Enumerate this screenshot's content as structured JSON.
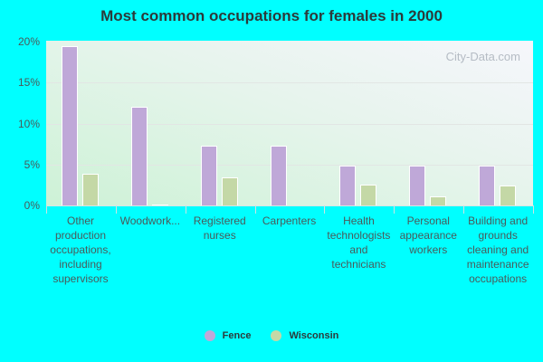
{
  "title": "Most common occupations for females in 2000",
  "watermark": "City-Data.com",
  "colors": {
    "fence": "#bfa8d8",
    "wisconsin": "#c4d8a6"
  },
  "y_ticks": [
    "0%",
    "5%",
    "10%",
    "15%",
    "20%"
  ],
  "legend": [
    {
      "label": "Fence",
      "color": "#bfa8d8"
    },
    {
      "label": "Wisconsin",
      "color": "#c4d8a6"
    }
  ],
  "categories": [
    "Other production occupations, including supervisors",
    "Woodwork...",
    "Registered nurses",
    "Carpenters",
    "Health technologists and technicians",
    "Personal appearance workers",
    "Building and grounds cleaning and maintenance occupations"
  ],
  "chart_data": {
    "type": "bar",
    "title": "Most common occupations for females in 2000",
    "xlabel": "",
    "ylabel": "",
    "ylim": [
      0,
      20
    ],
    "grid": true,
    "legend_position": "bottom",
    "categories": [
      "Other production occupations, including supervisors",
      "Woodwork...",
      "Registered nurses",
      "Carpenters",
      "Health technologists and technicians",
      "Personal appearance workers",
      "Building and grounds cleaning and maintenance occupations"
    ],
    "series": [
      {
        "name": "Fence",
        "values": [
          19.5,
          12.1,
          7.3,
          7.3,
          4.9,
          4.9,
          4.9
        ]
      },
      {
        "name": "Wisconsin",
        "values": [
          3.9,
          0.1,
          3.4,
          0.0,
          2.5,
          1.1,
          2.4
        ]
      }
    ]
  }
}
